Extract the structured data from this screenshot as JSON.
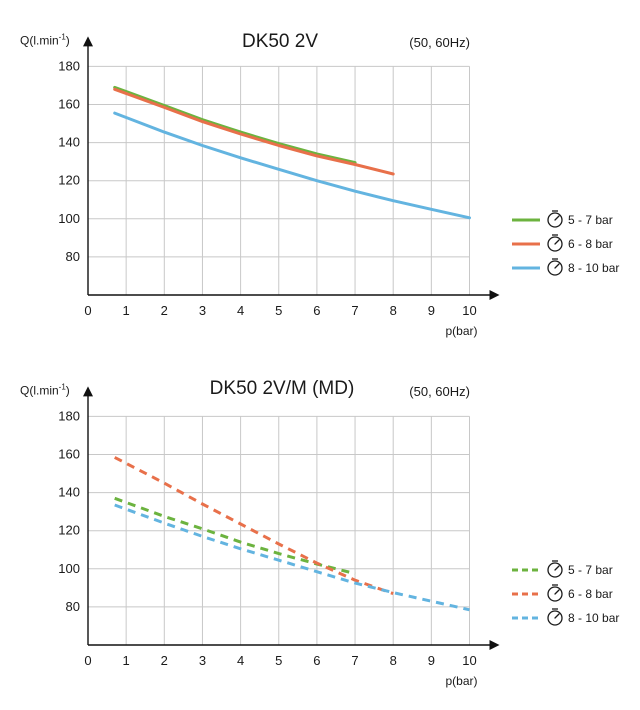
{
  "chart_data": [
    {
      "type": "line",
      "title": "DK50 2V",
      "subtitle": "(50, 60Hz)",
      "ylabel": "Q(l.min",
      "ylabel_sup": "-1",
      "xlabel": "p(bar)",
      "xlim": [
        0,
        10
      ],
      "ylim": [
        60,
        180
      ],
      "x_ticks": [
        0,
        1,
        2,
        3,
        4,
        5,
        6,
        7,
        8,
        9,
        10
      ],
      "y_ticks": [
        80,
        100,
        120,
        140,
        160,
        180
      ],
      "grid": true,
      "legend_position": "right",
      "line_style": "solid",
      "series": [
        {
          "name": "5 - 7 bar",
          "color": "#6cb33f",
          "x": [
            0.7,
            2,
            3,
            4,
            5,
            6,
            7
          ],
          "y": [
            169,
            159.5,
            152,
            145.5,
            139.5,
            134,
            129.5
          ]
        },
        {
          "name": "6 - 8 bar",
          "color": "#e8704a",
          "x": [
            0.7,
            2,
            3,
            4,
            5,
            6,
            7,
            8
          ],
          "y": [
            168,
            158.5,
            151,
            144.5,
            138.5,
            133,
            128.5,
            123.5
          ]
        },
        {
          "name": "8 - 10 bar",
          "color": "#63b4e0",
          "x": [
            0.7,
            2,
            3,
            4,
            5,
            6,
            7,
            8,
            9,
            10
          ],
          "y": [
            155.5,
            145.5,
            138.5,
            132,
            126,
            120,
            114.5,
            109.5,
            105,
            100.5
          ]
        }
      ]
    },
    {
      "type": "line",
      "title": "DK50 2V/M (MD)",
      "subtitle": "(50, 60Hz)",
      "ylabel": "Q(l.min",
      "ylabel_sup": "-1",
      "xlabel": "p(bar)",
      "xlim": [
        0,
        10
      ],
      "ylim": [
        60,
        180
      ],
      "x_ticks": [
        0,
        1,
        2,
        3,
        4,
        5,
        6,
        7,
        8,
        9,
        10
      ],
      "y_ticks": [
        80,
        100,
        120,
        140,
        160,
        180
      ],
      "grid": true,
      "legend_position": "right",
      "line_style": "dashed",
      "series": [
        {
          "name": "5 - 7 bar",
          "color": "#6cb33f",
          "x": [
            0.7,
            2,
            3,
            4,
            5,
            6,
            7
          ],
          "y": [
            137,
            127.5,
            121,
            114,
            108,
            102.5,
            97.5
          ]
        },
        {
          "name": "6 - 8 bar",
          "color": "#e8704a",
          "x": [
            0.7,
            2,
            3,
            4,
            5,
            6,
            7,
            8
          ],
          "y": [
            158.5,
            145,
            134,
            123.5,
            113,
            103,
            94,
            87
          ]
        },
        {
          "name": "8 - 10 bar",
          "color": "#63b4e0",
          "x": [
            0.7,
            2,
            3,
            4,
            5,
            6,
            7,
            8,
            9,
            10
          ],
          "y": [
            133.5,
            124,
            117,
            110.5,
            104.5,
            98.5,
            92.5,
            87.5,
            83,
            78.5
          ]
        }
      ]
    }
  ]
}
